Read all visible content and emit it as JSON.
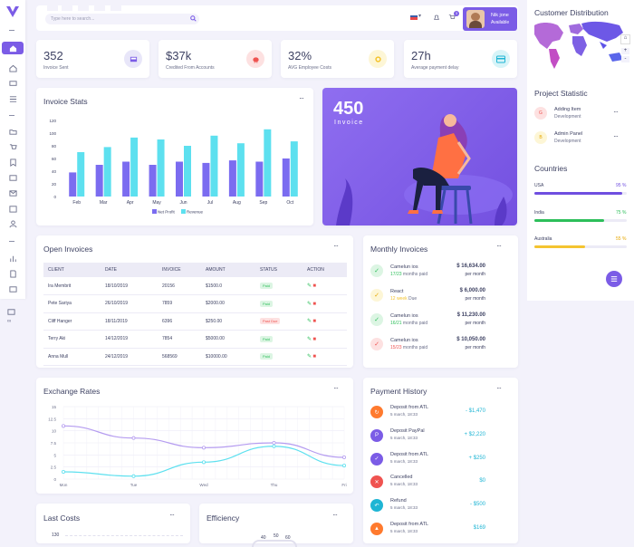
{
  "search": {
    "placeholder": "Type here to search..."
  },
  "header": {
    "cart_count": "3",
    "profile_name": "Nik jone",
    "profile_status": "Available"
  },
  "stats": [
    {
      "value": "352",
      "label": "Invoice Sent",
      "icon": "inbox-icon",
      "color": "#e8e6f9",
      "icon_color": "#7b5ce6"
    },
    {
      "value": "$37k",
      "label": "Credited From Accounts",
      "icon": "piggy-bank-icon",
      "color": "#fde1e1",
      "icon_color": "#ef5350"
    },
    {
      "value": "32%",
      "label": "AVG Employee Costs",
      "icon": "coins-icon",
      "color": "#fdf6d6",
      "icon_color": "#f4c430"
    },
    {
      "value": "27h",
      "label": "Average payment delay",
      "icon": "credit-card-icon",
      "color": "#d7f4f8",
      "icon_color": "#1fb5d4"
    }
  ],
  "invoice_stats": {
    "title": "Invoice Stats",
    "chart_data": {
      "type": "bar",
      "categories": [
        "Feb",
        "Mar",
        "Apr",
        "May",
        "Jun",
        "Jul",
        "Aug",
        "Sep",
        "Oct"
      ],
      "series": [
        {
          "name": "Net Profit",
          "values": [
            38,
            50,
            55,
            50,
            55,
            53,
            57,
            55,
            60
          ],
          "color": "#7b6cf0"
        },
        {
          "name": "Revenue",
          "values": [
            70,
            78,
            93,
            90,
            80,
            96,
            84,
            106,
            87
          ],
          "color": "#5de0ef"
        }
      ],
      "yticks": [
        0,
        20,
        40,
        60,
        80,
        100,
        120
      ],
      "ylim": [
        0,
        120
      ],
      "legend": "bottom"
    }
  },
  "banner": {
    "number": "450",
    "label": "Invoice"
  },
  "customer_distribution": {
    "title": "Customer Distribution"
  },
  "project_statistic": {
    "title": "Project Statistic",
    "items": [
      {
        "initial": "G",
        "name": "Adding Item",
        "sub": "Development",
        "bg": "#fde1e1",
        "fg": "#ef5350"
      },
      {
        "initial": "B",
        "name": "Admin Panel",
        "sub": "Development",
        "bg": "#fdf6d6",
        "fg": "#e6a700"
      }
    ]
  },
  "countries": {
    "title": "Countries",
    "items": [
      {
        "name": "USA",
        "value": 95,
        "percent": "95 %",
        "color": "#6f4ee0"
      },
      {
        "name": "India",
        "value": 75,
        "percent": "75 %",
        "color": "#2dbf5a"
      },
      {
        "name": "Australia",
        "value": 55,
        "percent": "55 %",
        "color": "#f4c430"
      }
    ]
  },
  "open_invoices": {
    "title": "Open Invoices",
    "columns": [
      "CLIENT",
      "DATE",
      "INVOICE",
      "AMOUNT",
      "STATUS",
      "ACTION"
    ],
    "rows": [
      {
        "client": "Ira Membrit",
        "date": "18/10/2019",
        "invoice": "20156",
        "amount": "$1500.0",
        "status": "Paid",
        "paid": true
      },
      {
        "client": "Pete Sariya",
        "date": "26/10/2019",
        "invoice": "7859",
        "amount": "$2000.00",
        "status": "Paid",
        "paid": true
      },
      {
        "client": "Cliff Hanger",
        "date": "18/11/2019",
        "invoice": "6396",
        "amount": "$250.00",
        "status": "Past Due",
        "paid": false
      },
      {
        "client": "Terry Aki",
        "date": "14/12/2019",
        "invoice": "7854",
        "amount": "$5000.00",
        "status": "Paid",
        "paid": true
      },
      {
        "client": "Anna Mull",
        "date": "24/12/2019",
        "invoice": "568569",
        "amount": "$10000.00",
        "status": "Paid",
        "paid": true
      }
    ]
  },
  "monthly_invoices": {
    "title": "Monthly Invoices",
    "items": [
      {
        "name": "Camelun ios",
        "highlight": "17/23",
        "rest": " months paid",
        "hl_color": "#2dbf5a",
        "amount": "$ 16,634.00",
        "period": "per month",
        "bg": "#dcf5e3",
        "fg": "#2dbf5a",
        "icon": "check-icon"
      },
      {
        "name": "React",
        "highlight": "12 week",
        "rest": " Due",
        "hl_color": "#f4c430",
        "amount": "$ 6,000.00",
        "period": "per month",
        "bg": "#fdf6d6",
        "fg": "#e6a700",
        "icon": "check-icon"
      },
      {
        "name": "Camelun ios",
        "highlight": "16/21",
        "rest": " months paid",
        "hl_color": "#2dbf5a",
        "amount": "$ 11,230.00",
        "period": "per month",
        "bg": "#dcf5e3",
        "fg": "#2dbf5a",
        "icon": "check-icon"
      },
      {
        "name": "Camelun ios",
        "highlight": "15/23",
        "rest": " months paid",
        "hl_color": "#ef5350",
        "amount": "$ 10,050.00",
        "period": "per month",
        "bg": "#fde1e1",
        "fg": "#ef5350",
        "icon": "check-icon"
      }
    ]
  },
  "exchange_rates": {
    "title": "Exchange Rates",
    "chart_data": {
      "type": "line",
      "x": [
        "Mon",
        "Tue",
        "Wed",
        "Thu",
        "Fri"
      ],
      "series": [
        {
          "values": [
            11,
            8.5,
            6.5,
            7.5,
            4.5
          ],
          "color": "#b59cf0"
        },
        {
          "values": [
            1.5,
            0.6,
            3.5,
            6.8,
            2.8
          ],
          "color": "#5de0ef"
        }
      ],
      "yticks": [
        "0",
        "2.5",
        "5",
        "7.5",
        "10",
        "12.5",
        "15"
      ],
      "ylim": [
        0,
        15
      ],
      "grid": true
    }
  },
  "payment_history": {
    "title": "Payment History",
    "items": [
      {
        "name": "Deposit from ATL",
        "date": "5 march, 18:33",
        "amount": "- $1,470",
        "bg": "#ff7a2e",
        "icon": "refresh-icon"
      },
      {
        "name": "Deposit PayPal",
        "date": "5 march, 18:33",
        "amount": "+ $2,220",
        "bg": "#7b5ce6",
        "icon": "paypal-icon"
      },
      {
        "name": "Deposit from ATL",
        "date": "5 march, 18:33",
        "amount": "+ $250",
        "bg": "#7b5ce6",
        "icon": "check-icon"
      },
      {
        "name": "Cancelled",
        "date": "5 march, 18:33",
        "amount": "$0",
        "bg": "#ef5350",
        "icon": "close-icon"
      },
      {
        "name": "Refund",
        "date": "5 march, 18:33",
        "amount": "- $500",
        "bg": "#1fb5d4",
        "icon": "undo-icon"
      },
      {
        "name": "Deposit from ATL",
        "date": "5 march, 18:33",
        "amount": "$169",
        "bg": "#ff7a2e",
        "icon": "thumbs-up-icon"
      }
    ]
  },
  "last_costs": {
    "title": "Last Costs",
    "first_tick": "130"
  },
  "efficiency": {
    "title": "Efficiency",
    "ticks": [
      "40",
      "50",
      "60"
    ]
  }
}
